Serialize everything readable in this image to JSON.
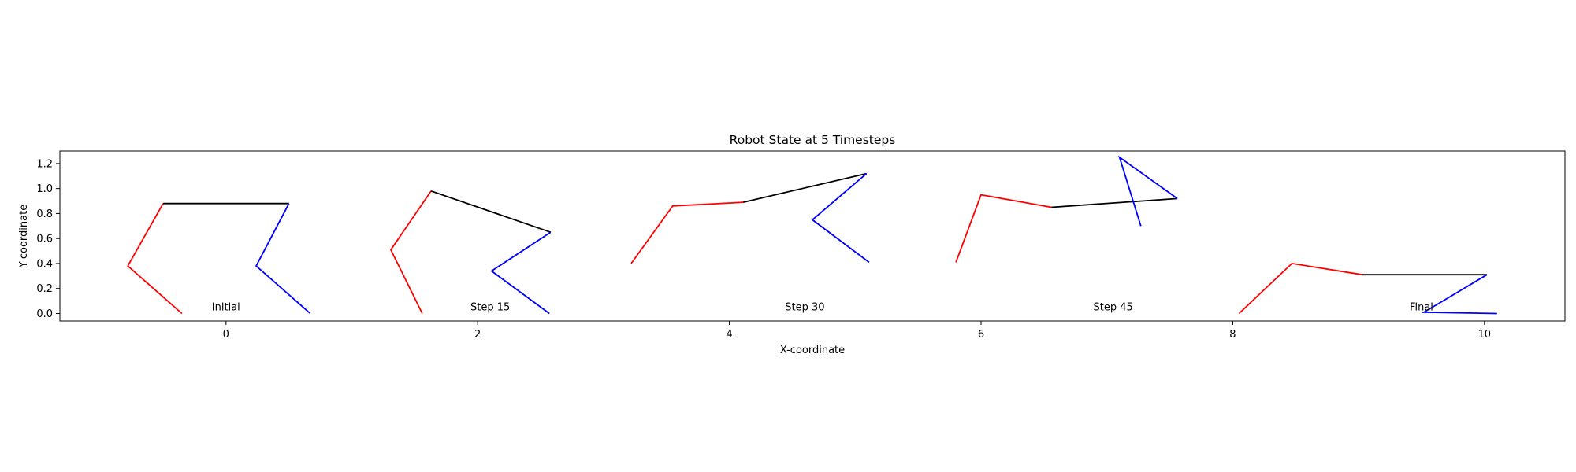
{
  "chart_data": {
    "type": "line",
    "title": "Robot State at 5 Timesteps",
    "xlabel": "X-coordinate",
    "ylabel": "Y-coordinate",
    "xlim": [
      -1.32,
      10.64
    ],
    "ylim": [
      -0.06,
      1.3
    ],
    "xticks": [
      0,
      2,
      4,
      6,
      8,
      10
    ],
    "yticks": [
      0.0,
      0.2,
      0.4,
      0.6,
      0.8,
      1.0,
      1.2
    ],
    "ytick_labels": [
      "0.0",
      "0.2",
      "0.4",
      "0.6",
      "0.8",
      "1.0",
      "1.2"
    ],
    "grid": false,
    "segment_colors": {
      "left_leg": "#ff0000",
      "body": "#000000",
      "right_leg": "#0000ff"
    },
    "states": [
      {
        "label": "Initial",
        "label_pos": [
          0.0,
          0.0
        ],
        "left_leg": [
          [
            -0.35,
            0.0
          ],
          [
            -0.78,
            0.38
          ],
          [
            -0.5,
            0.88
          ]
        ],
        "body": [
          [
            -0.5,
            0.88
          ],
          [
            0.5,
            0.88
          ]
        ],
        "right_leg": [
          [
            0.5,
            0.88
          ],
          [
            0.24,
            0.38
          ],
          [
            0.67,
            0.0
          ]
        ]
      },
      {
        "label": "Step 15",
        "label_pos": [
          2.1,
          0.0
        ],
        "left_leg": [
          [
            1.56,
            0.0
          ],
          [
            1.31,
            0.51
          ],
          [
            1.63,
            0.98
          ]
        ],
        "body": [
          [
            1.63,
            0.98
          ],
          [
            2.58,
            0.65
          ]
        ],
        "right_leg": [
          [
            2.58,
            0.65
          ],
          [
            2.11,
            0.34
          ],
          [
            2.57,
            0.0
          ]
        ]
      },
      {
        "label": "Step 30",
        "label_pos": [
          4.6,
          0.0
        ],
        "left_leg": [
          [
            3.22,
            0.4
          ],
          [
            3.55,
            0.86
          ],
          [
            4.11,
            0.89
          ]
        ],
        "body": [
          [
            4.11,
            0.89
          ],
          [
            5.09,
            1.12
          ]
        ],
        "right_leg": [
          [
            5.09,
            1.12
          ],
          [
            4.66,
            0.75
          ],
          [
            5.11,
            0.41
          ]
        ]
      },
      {
        "label": "Step 45",
        "label_pos": [
          7.05,
          0.0
        ],
        "left_leg": [
          [
            5.8,
            0.41
          ],
          [
            6.0,
            0.95
          ],
          [
            6.56,
            0.85
          ]
        ],
        "body": [
          [
            6.56,
            0.85
          ],
          [
            7.56,
            0.92
          ]
        ],
        "right_leg": [
          [
            7.56,
            0.92
          ],
          [
            7.1,
            1.25
          ],
          [
            7.27,
            0.7
          ]
        ]
      },
      {
        "label": "Final",
        "label_pos": [
          9.5,
          0.0
        ],
        "left_leg": [
          [
            8.05,
            0.0
          ],
          [
            8.47,
            0.4
          ],
          [
            9.03,
            0.31
          ]
        ],
        "body": [
          [
            9.03,
            0.31
          ],
          [
            10.02,
            0.31
          ]
        ],
        "right_leg": [
          [
            10.02,
            0.31
          ],
          [
            9.52,
            0.01
          ],
          [
            10.1,
            0.0
          ]
        ]
      }
    ]
  }
}
